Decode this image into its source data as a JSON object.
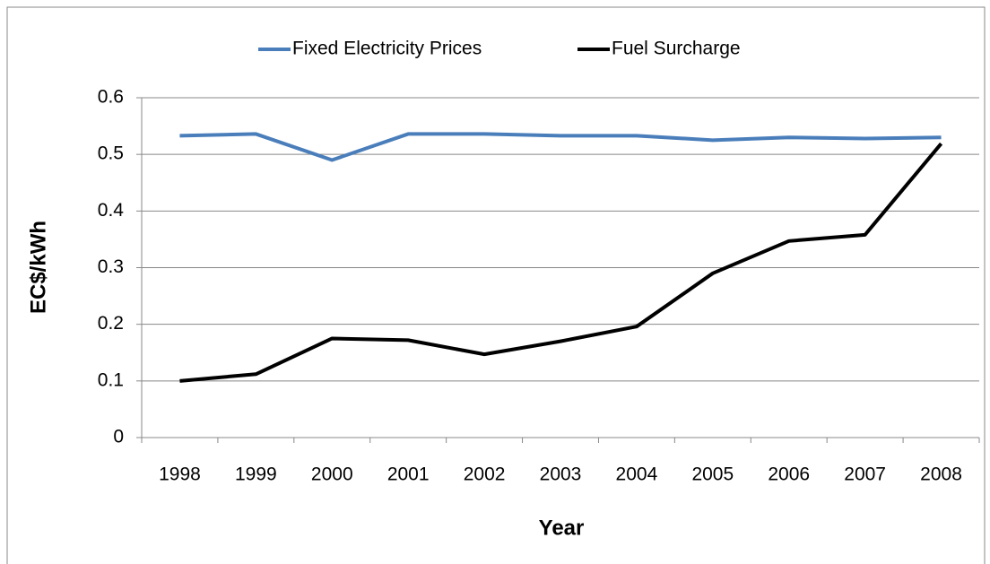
{
  "chart_data": {
    "type": "line",
    "categories": [
      "1998",
      "1999",
      "2000",
      "2001",
      "2002",
      "2003",
      "2004",
      "2005",
      "2006",
      "2007",
      "2008"
    ],
    "series": [
      {
        "name": "Fixed Electricity Prices",
        "color": "#4a7ebb",
        "values": [
          0.533,
          0.536,
          0.49,
          0.536,
          0.536,
          0.533,
          0.533,
          0.525,
          0.53,
          0.528,
          0.53
        ]
      },
      {
        "name": "Fuel Surcharge",
        "color": "#000000",
        "values": [
          0.1,
          0.112,
          0.175,
          0.172,
          0.147,
          0.17,
          0.196,
          0.29,
          0.347,
          0.358,
          0.519
        ]
      }
    ],
    "ylabel": "EC$/kWh",
    "xlabel": "Year",
    "ylim": [
      0,
      0.6
    ],
    "yticks": [
      0,
      0.1,
      0.2,
      0.3,
      0.4,
      0.5,
      0.6
    ],
    "grid": true,
    "legend": "top"
  }
}
